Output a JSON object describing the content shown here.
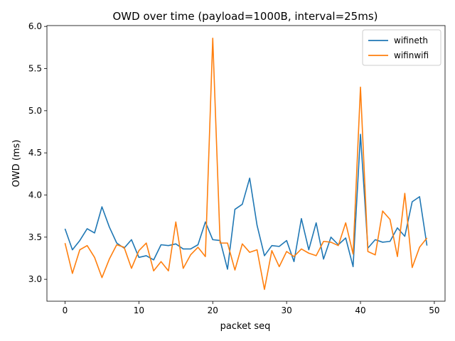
{
  "chart_data": {
    "type": "line",
    "title": "OWD over time (payload=1000B, interval=25ms)",
    "xlabel": "packet seq",
    "ylabel": "OWD (ms)",
    "xlim": [
      -2.45,
      51.45
    ],
    "ylim": [
      2.74,
      6.01
    ],
    "xticks": [
      0,
      10,
      20,
      30,
      40,
      50
    ],
    "yticks": [
      3.0,
      3.5,
      4.0,
      4.5,
      5.0,
      5.5,
      6.0
    ],
    "grid": false,
    "legend_position": "top-right",
    "x": [
      0,
      1,
      2,
      3,
      4,
      5,
      6,
      7,
      8,
      9,
      10,
      11,
      12,
      13,
      14,
      15,
      16,
      17,
      18,
      19,
      20,
      21,
      22,
      23,
      24,
      25,
      26,
      27,
      28,
      29,
      30,
      31,
      32,
      33,
      34,
      35,
      36,
      37,
      38,
      39,
      40,
      41,
      42,
      43,
      44,
      45,
      46,
      47,
      48,
      49
    ],
    "series": [
      {
        "name": "wifineth",
        "color": "#1f77b4",
        "values": [
          3.6,
          3.35,
          3.46,
          3.6,
          3.55,
          3.86,
          3.62,
          3.43,
          3.37,
          3.47,
          3.26,
          3.28,
          3.23,
          3.41,
          3.4,
          3.42,
          3.36,
          3.36,
          3.41,
          3.68,
          3.47,
          3.46,
          3.12,
          3.83,
          3.89,
          4.2,
          3.64,
          3.28,
          3.4,
          3.39,
          3.46,
          3.21,
          3.72,
          3.35,
          3.67,
          3.24,
          3.5,
          3.41,
          3.49,
          3.15,
          4.72,
          3.37,
          3.47,
          3.44,
          3.45,
          3.61,
          3.51,
          3.92,
          3.98,
          3.4
        ]
      },
      {
        "name": "wifinwifi",
        "color": "#ff7f0e",
        "values": [
          3.43,
          3.07,
          3.35,
          3.4,
          3.26,
          3.02,
          3.24,
          3.41,
          3.38,
          3.13,
          3.34,
          3.43,
          3.1,
          3.21,
          3.1,
          3.68,
          3.13,
          3.29,
          3.38,
          3.27,
          5.86,
          3.43,
          3.43,
          3.11,
          3.42,
          3.32,
          3.35,
          2.88,
          3.34,
          3.15,
          3.33,
          3.27,
          3.36,
          3.31,
          3.28,
          3.45,
          3.44,
          3.4,
          3.67,
          3.3,
          5.28,
          3.33,
          3.29,
          3.81,
          3.71,
          3.27,
          4.02,
          3.14,
          3.38,
          3.49
        ]
      }
    ]
  }
}
